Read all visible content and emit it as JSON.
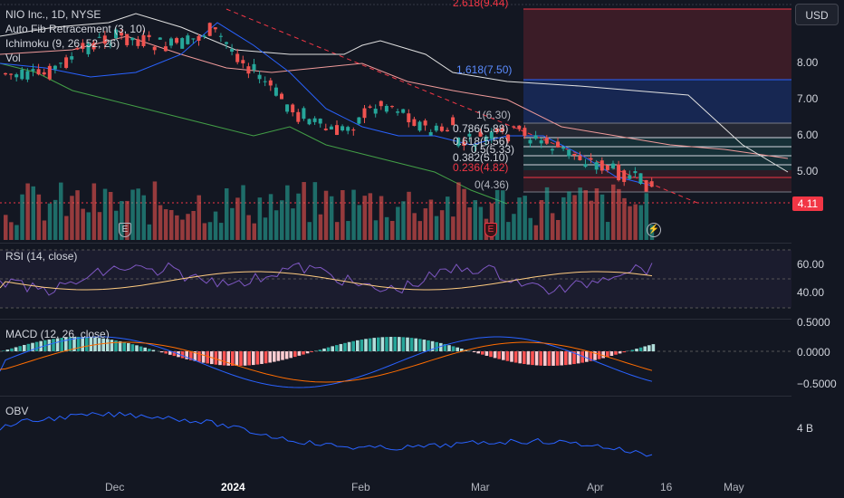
{
  "header": {
    "symbol": "NIO Inc., 1D, NYSE",
    "indicators": [
      "Auto Fib Retracement (3, 10)",
      "Ichimoku (9, 26, 52, 26)",
      "Vol"
    ]
  },
  "currency_button": "USD",
  "last_price": "4.11",
  "price_axis": [
    "8.00",
    "7.00",
    "6.00",
    "5.00"
  ],
  "fib_levels": [
    {
      "label": "2.618(9.44)",
      "color": "#f23645"
    },
    {
      "label": "1.618(7.50)",
      "color": "#2962ff"
    },
    {
      "label": "1(6.30)",
      "color": "#787b86"
    },
    {
      "label": "0.786(5.88)",
      "color": "#d1d4dc"
    },
    {
      "label": "0.618(5.56)",
      "color": "#d1d4dc"
    },
    {
      "label": "0.5(5.33)",
      "color": "#d1d4dc"
    },
    {
      "label": "0.382(5.10)",
      "color": "#d1d4dc"
    },
    {
      "label": "0.236(4.82)",
      "color": "#f23645"
    },
    {
      "label": "0(4.36)",
      "color": "#787b86"
    }
  ],
  "rsi": {
    "title": "RSI (14, close)",
    "axis": [
      "60.00",
      "40.00"
    ]
  },
  "macd": {
    "title": "MACD (12, 26, close)",
    "axis": [
      "0.5000",
      "0.0000",
      "−0.5000"
    ]
  },
  "obv": {
    "title": "OBV",
    "axis": [
      "4 B"
    ]
  },
  "time_axis": [
    {
      "label": "Dec",
      "bold": false
    },
    {
      "label": "2024",
      "bold": true
    },
    {
      "label": "Feb",
      "bold": false
    },
    {
      "label": "Mar",
      "bold": false
    },
    {
      "label": "Apr",
      "bold": false
    },
    {
      "label": "16",
      "bold": false
    },
    {
      "label": "May",
      "bold": false
    }
  ],
  "events": [
    "E",
    "E"
  ],
  "colors": {
    "up": "#26a69a",
    "down": "#ef5350",
    "bg": "#131722"
  }
}
